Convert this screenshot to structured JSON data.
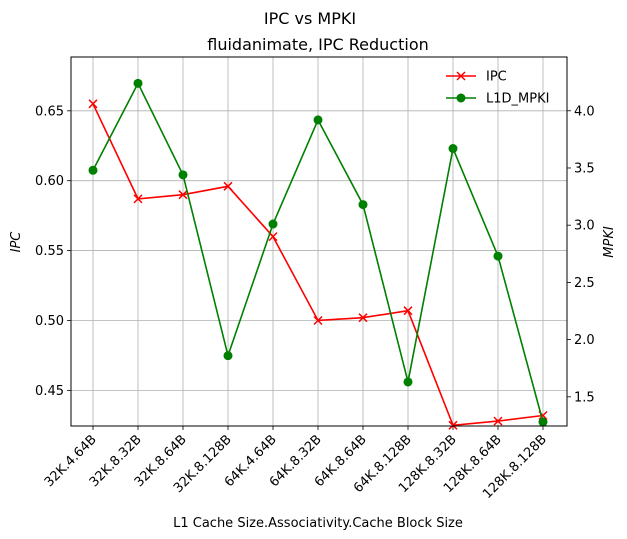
{
  "chart_data": {
    "type": "line",
    "suptitle": "IPC vs MPKI",
    "title": "fluidanimate, IPC Reduction",
    "xlabel": "L1 Cache Size.Associativity.Cache Block Size",
    "ylabel_left": "IPC",
    "ylabel_right": "MPKI",
    "categories": [
      "32K.4.64B",
      "32K.8.32B",
      "32K.8.64B",
      "32K.8.128B",
      "64K.4.64B",
      "64K.8.32B",
      "64K.8.64B",
      "64K.8.128B",
      "128K.8.32B",
      "128K.8.64B",
      "128K.8.128B"
    ],
    "ylim_left": [
      0.4245,
      0.6885
    ],
    "yticks_left": [
      "0.45",
      "0.50",
      "0.55",
      "0.60",
      "0.65"
    ],
    "ylim_right": [
      1.245,
      4.47
    ],
    "yticks_right": [
      "1.5",
      "2.0",
      "2.5",
      "3.0",
      "3.5",
      "4.0"
    ],
    "grid": true,
    "legend_placement": "top-right",
    "series": [
      {
        "name": "IPC",
        "axis": "left",
        "color": "#ff0000",
        "marker": "x",
        "values": [
          0.655,
          0.587,
          0.59,
          0.596,
          0.56,
          0.5,
          0.502,
          0.507,
          0.425,
          0.428,
          0.432
        ]
      },
      {
        "name": "L1D_MPKI",
        "axis": "right",
        "color": "#008000",
        "marker": "o",
        "values": [
          3.48,
          4.24,
          3.44,
          1.86,
          3.01,
          3.92,
          3.18,
          1.63,
          3.67,
          2.73,
          1.28
        ]
      }
    ]
  }
}
